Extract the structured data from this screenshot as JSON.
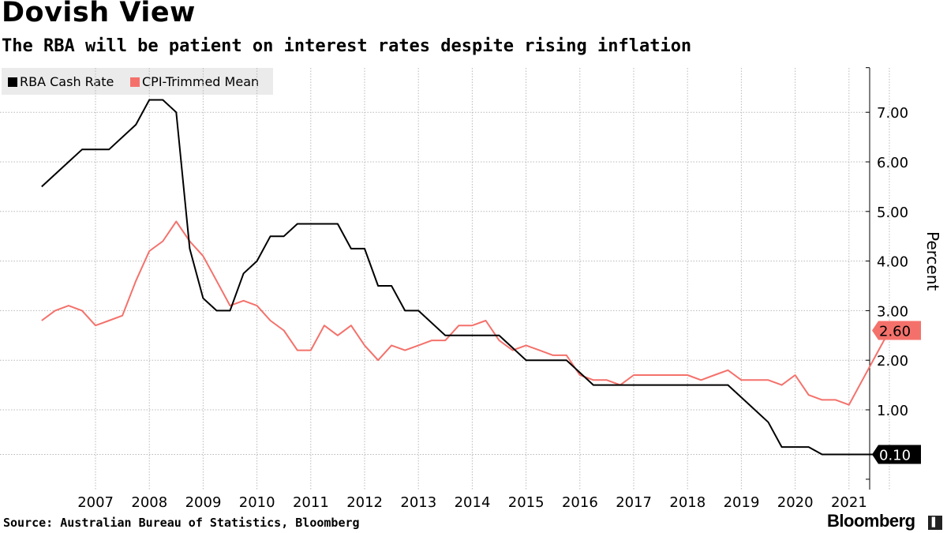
{
  "header": {
    "title": "Dovish View",
    "subtitle": "The RBA will be patient on interest rates despite rising inflation"
  },
  "footer": {
    "source": "Source: Australian Bureau of Statistics, Bloomberg",
    "brand": "Bloomberg",
    "brand_mark": "▌"
  },
  "colors": {
    "cash": "#000000",
    "cpi": "#f4716b",
    "grid": "#b8b8b8",
    "legend_bg": "#ebebeb"
  },
  "chart_data": {
    "type": "line",
    "title": "Dovish View",
    "subtitle": "The RBA will be patient on interest rates despite rising inflation",
    "xlabel": "",
    "ylabel": "Percent",
    "xlim": [
      2006.0,
      2021.75
    ],
    "ylim": [
      -0.5,
      8.0
    ],
    "y_ticks": [
      0.1,
      1.0,
      2.0,
      3.0,
      4.0,
      5.0,
      6.0,
      7.0
    ],
    "y_tick_labels": [
      "",
      "1.00",
      "2.00",
      "3.00",
      "4.00",
      "5.00",
      "6.00",
      "7.00"
    ],
    "x_ticks": [
      2007,
      2008,
      2009,
      2010,
      2011,
      2012,
      2013,
      2014,
      2015,
      2016,
      2017,
      2018,
      2019,
      2020,
      2021
    ],
    "x_tick_labels": [
      "2007",
      "2008",
      "2009",
      "2010",
      "2011",
      "2012",
      "2013",
      "2014",
      "2015",
      "2016",
      "2017",
      "2018",
      "2019",
      "2020",
      "2021"
    ],
    "legend_position": "top-left",
    "grid": true,
    "series": [
      {
        "name": "RBA Cash Rate",
        "color": "#000000",
        "last_label": "0.10",
        "points": [
          [
            2006.0,
            5.5
          ],
          [
            2006.5,
            6.0
          ],
          [
            2006.75,
            6.25
          ],
          [
            2007.25,
            6.25
          ],
          [
            2007.75,
            6.75
          ],
          [
            2008.0,
            7.25
          ],
          [
            2008.25,
            7.25
          ],
          [
            2008.5,
            7.0
          ],
          [
            2008.75,
            4.25
          ],
          [
            2009.0,
            3.25
          ],
          [
            2009.25,
            3.0
          ],
          [
            2009.5,
            3.0
          ],
          [
            2009.75,
            3.75
          ],
          [
            2010.0,
            4.0
          ],
          [
            2010.25,
            4.5
          ],
          [
            2010.5,
            4.5
          ],
          [
            2010.75,
            4.75
          ],
          [
            2011.0,
            4.75
          ],
          [
            2011.5,
            4.75
          ],
          [
            2011.75,
            4.25
          ],
          [
            2012.0,
            4.25
          ],
          [
            2012.25,
            3.5
          ],
          [
            2012.5,
            3.5
          ],
          [
            2012.75,
            3.0
          ],
          [
            2013.0,
            3.0
          ],
          [
            2013.5,
            2.5
          ],
          [
            2014.0,
            2.5
          ],
          [
            2014.5,
            2.5
          ],
          [
            2014.75,
            2.25
          ],
          [
            2015.0,
            2.0
          ],
          [
            2015.5,
            2.0
          ],
          [
            2015.75,
            2.0
          ],
          [
            2016.25,
            1.5
          ],
          [
            2016.5,
            1.5
          ],
          [
            2017.0,
            1.5
          ],
          [
            2018.0,
            1.5
          ],
          [
            2018.75,
            1.5
          ],
          [
            2019.25,
            1.0
          ],
          [
            2019.5,
            0.75
          ],
          [
            2019.75,
            0.25
          ],
          [
            2020.25,
            0.25
          ],
          [
            2020.5,
            0.1
          ],
          [
            2021.0,
            0.1
          ],
          [
            2021.5,
            0.1
          ]
        ]
      },
      {
        "name": "CPI-Trimmed Mean",
        "color": "#f4716b",
        "last_label": "2.60",
        "points": [
          [
            2006.0,
            2.8
          ],
          [
            2006.25,
            3.0
          ],
          [
            2006.5,
            3.1
          ],
          [
            2006.75,
            3.0
          ],
          [
            2007.0,
            2.7
          ],
          [
            2007.25,
            2.8
          ],
          [
            2007.5,
            2.9
          ],
          [
            2007.75,
            3.6
          ],
          [
            2008.0,
            4.2
          ],
          [
            2008.25,
            4.4
          ],
          [
            2008.5,
            4.8
          ],
          [
            2008.75,
            4.4
          ],
          [
            2009.0,
            4.1
          ],
          [
            2009.25,
            3.6
          ],
          [
            2009.5,
            3.1
          ],
          [
            2009.75,
            3.2
          ],
          [
            2010.0,
            3.1
          ],
          [
            2010.25,
            2.8
          ],
          [
            2010.5,
            2.6
          ],
          [
            2010.75,
            2.2
          ],
          [
            2011.0,
            2.2
          ],
          [
            2011.25,
            2.7
          ],
          [
            2011.5,
            2.5
          ],
          [
            2011.75,
            2.7
          ],
          [
            2012.0,
            2.3
          ],
          [
            2012.25,
            2.0
          ],
          [
            2012.5,
            2.3
          ],
          [
            2012.75,
            2.2
          ],
          [
            2013.0,
            2.3
          ],
          [
            2013.25,
            2.4
          ],
          [
            2013.5,
            2.4
          ],
          [
            2013.75,
            2.7
          ],
          [
            2014.0,
            2.7
          ],
          [
            2014.25,
            2.8
          ],
          [
            2014.5,
            2.4
          ],
          [
            2014.75,
            2.2
          ],
          [
            2015.0,
            2.3
          ],
          [
            2015.25,
            2.2
          ],
          [
            2015.5,
            2.1
          ],
          [
            2015.75,
            2.1
          ],
          [
            2016.0,
            1.7
          ],
          [
            2016.25,
            1.6
          ],
          [
            2016.5,
            1.6
          ],
          [
            2016.75,
            1.5
          ],
          [
            2017.0,
            1.7
          ],
          [
            2017.25,
            1.7
          ],
          [
            2017.5,
            1.7
          ],
          [
            2017.75,
            1.7
          ],
          [
            2018.0,
            1.7
          ],
          [
            2018.25,
            1.6
          ],
          [
            2018.5,
            1.7
          ],
          [
            2018.75,
            1.8
          ],
          [
            2019.0,
            1.6
          ],
          [
            2019.25,
            1.6
          ],
          [
            2019.5,
            1.6
          ],
          [
            2019.75,
            1.5
          ],
          [
            2020.0,
            1.7
          ],
          [
            2020.25,
            1.3
          ],
          [
            2020.5,
            1.2
          ],
          [
            2020.75,
            1.2
          ],
          [
            2021.0,
            1.1
          ],
          [
            2021.25,
            1.6
          ],
          [
            2021.5,
            2.1
          ],
          [
            2021.75,
            2.6
          ]
        ]
      }
    ]
  }
}
